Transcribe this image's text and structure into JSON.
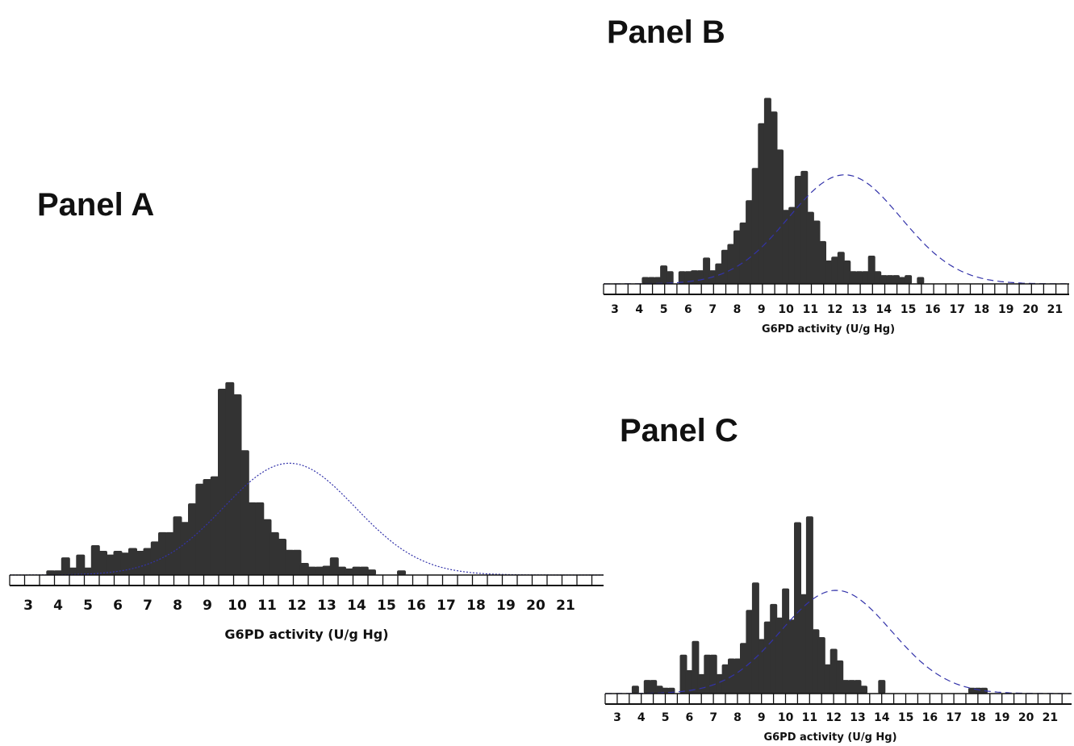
{
  "chart_data": [
    {
      "panel_label": "Panel A",
      "type": "bar",
      "xlabel": "G6PD activity (U/g Hg)",
      "ylabel": "",
      "xlim": [
        2.5,
        21.5
      ],
      "ylim": [
        0,
        100
      ],
      "x_ticks": [
        "3",
        "4",
        "5",
        "6",
        "7",
        "8",
        "9",
        "10",
        "11",
        "12",
        "13",
        "14",
        "15",
        "16",
        "17",
        "18",
        "19",
        "20",
        "21"
      ],
      "normal_curve": {
        "mean": 11.75,
        "sd": 2.2,
        "peak": 60
      },
      "x": [
        3.75,
        4.0,
        4.25,
        4.5,
        4.75,
        5.0,
        5.25,
        5.5,
        5.75,
        6.0,
        6.25,
        6.5,
        6.75,
        7.0,
        7.25,
        7.5,
        7.75,
        8.0,
        8.25,
        8.5,
        8.75,
        9.0,
        9.25,
        9.5,
        9.75,
        10.0,
        10.25,
        10.5,
        10.75,
        11.0,
        11.25,
        11.5,
        11.75,
        12.0,
        12.25,
        12.5,
        12.75,
        13.0,
        13.25,
        13.5,
        13.75,
        14.0,
        14.25,
        14.5,
        14.75,
        15.0,
        15.25,
        15.5,
        15.75,
        16.0,
        16.25,
        16.5,
        16.75,
        17.0,
        17.25,
        17.5,
        17.75,
        18.0,
        18.25,
        18.5,
        18.75,
        19.0,
        19.25,
        19.5,
        19.75,
        20.0,
        20.25,
        20.5,
        20.75,
        21.0
      ],
      "values": [
        2.5,
        2.5,
        9.5,
        4.0,
        11.0,
        4.0,
        16.0,
        13.0,
        11.0,
        13.0,
        12.0,
        14.5,
        13.0,
        14.5,
        18.0,
        23.0,
        23.0,
        31.5,
        28.5,
        38.5,
        49.0,
        51.5,
        53.0,
        100.0,
        103.5,
        97.0,
        67.0,
        39.0,
        39.0,
        30.0,
        23.0,
        19.5,
        13.5,
        13.5,
        6.5,
        4.5,
        4.5,
        5.0,
        9.5,
        4.5,
        3.5,
        4.5,
        4.5,
        3.0,
        0,
        0,
        0,
        2.5,
        0,
        0,
        0,
        0,
        0,
        0,
        0,
        0,
        0,
        0,
        0,
        0,
        0,
        0,
        0,
        0,
        0,
        0,
        0,
        0,
        0,
        0
      ]
    },
    {
      "panel_label": "Panel B",
      "type": "bar",
      "xlabel": "G6PD activity (U/g Hg)",
      "ylabel": "",
      "xlim": [
        2.5,
        21.5
      ],
      "ylim": [
        0,
        100
      ],
      "x_ticks": [
        "3",
        "4",
        "5",
        "6",
        "7",
        "8",
        "9",
        "10",
        "11",
        "12",
        "13",
        "14",
        "15",
        "16",
        "17",
        "18",
        "19",
        "20",
        "21"
      ],
      "normal_curve": {
        "mean": 12.4,
        "sd": 2.3,
        "peak": 56
      },
      "x": [
        4.25,
        4.5,
        4.75,
        5.0,
        5.25,
        5.75,
        6.0,
        6.25,
        6.5,
        6.75,
        7.0,
        7.25,
        7.5,
        7.75,
        8.0,
        8.25,
        8.5,
        8.75,
        9.0,
        9.25,
        9.5,
        9.75,
        10.0,
        10.25,
        10.5,
        10.75,
        11.0,
        11.25,
        11.5,
        11.75,
        12.0,
        12.25,
        12.5,
        12.75,
        13.0,
        13.25,
        13.5,
        13.75,
        14.0,
        14.25,
        14.5,
        14.75,
        15.0,
        15.25,
        15.5,
        15.75,
        16.0,
        16.25,
        16.5,
        16.75,
        17.0,
        17.25,
        17.5,
        17.75,
        18.0,
        18.25,
        18.5,
        18.75,
        19.0
      ],
      "values": [
        3.5,
        3.5,
        3.5,
        9.5,
        6.5,
        6.5,
        6.5,
        7.0,
        7.0,
        13.5,
        7.0,
        10.5,
        17.5,
        20.5,
        27.5,
        31.5,
        43.0,
        59.5,
        82.5,
        95.5,
        88.5,
        69.0,
        38.0,
        39.5,
        55.5,
        58.0,
        37.0,
        32.5,
        22.0,
        12.0,
        14.0,
        16.5,
        12.0,
        6.5,
        6.5,
        6.5,
        14.5,
        6.5,
        4.5,
        4.5,
        4.5,
        3.5,
        4.5,
        0,
        3.5,
        0,
        0,
        0,
        0,
        0,
        0,
        0,
        0,
        0,
        0,
        0,
        0,
        0,
        0
      ]
    },
    {
      "panel_label": "Panel C",
      "type": "bar",
      "xlabel": "G6PD activity (U/g Hg)",
      "ylabel": "",
      "xlim": [
        2.5,
        21.5
      ],
      "ylim": [
        0,
        100
      ],
      "x_ticks": [
        "3",
        "4",
        "5",
        "6",
        "7",
        "8",
        "9",
        "10",
        "11",
        "12",
        "13",
        "14",
        "15",
        "16",
        "17",
        "18",
        "19",
        "20",
        "21"
      ],
      "normal_curve": {
        "mean": 12.1,
        "sd": 2.3,
        "peak": 53
      },
      "x": [
        3.75,
        4.25,
        4.5,
        4.75,
        5.0,
        5.25,
        5.75,
        6.0,
        6.25,
        6.5,
        6.75,
        7.0,
        7.25,
        7.5,
        7.75,
        8.0,
        8.25,
        8.5,
        8.75,
        9.0,
        9.25,
        9.5,
        9.75,
        10.0,
        10.25,
        10.5,
        10.75,
        11.0,
        11.25,
        11.5,
        11.75,
        12.0,
        12.25,
        12.5,
        12.75,
        13.0,
        13.25,
        13.5,
        13.75,
        14.0,
        14.25,
        14.5,
        14.75,
        15.0,
        15.25,
        15.5,
        15.75,
        16.0,
        16.25,
        16.5,
        16.75,
        17.0,
        17.25,
        17.5,
        17.75,
        18.0,
        18.25,
        18.5,
        18.75,
        19.0,
        19.25
      ],
      "values": [
        4,
        7,
        7,
        4,
        3,
        3,
        20,
        12,
        27,
        10,
        20,
        20,
        10,
        15,
        18,
        18,
        26,
        43,
        57,
        28,
        37,
        46,
        39,
        54,
        38,
        88,
        51,
        91,
        33,
        29,
        15,
        23,
        17,
        7,
        7,
        7,
        4,
        0,
        0,
        7,
        0,
        0,
        0,
        0,
        0,
        0,
        0,
        0,
        0,
        0,
        0,
        0,
        0,
        0,
        3,
        3,
        3,
        0,
        0,
        0,
        0
      ]
    }
  ]
}
